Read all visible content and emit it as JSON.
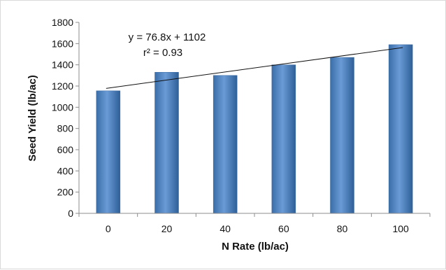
{
  "chart_data": {
    "type": "bar",
    "categories": [
      "0",
      "20",
      "40",
      "60",
      "80",
      "100"
    ],
    "values": [
      1155,
      1330,
      1300,
      1400,
      1470,
      1590
    ],
    "title": "",
    "xlabel": "N Rate (lb/ac)",
    "ylabel": "Seed Yield (lb/ac)",
    "ylim": [
      0,
      1800
    ],
    "yticks": [
      "0",
      "200",
      "400",
      "600",
      "800",
      "1000",
      "1200",
      "1400",
      "1600",
      "1800"
    ],
    "grid": false,
    "legend": "none",
    "bar_color": "#4a7ebb",
    "trendline": {
      "type": "linear",
      "start_value": 1178,
      "end_value": 1563,
      "equation_label": "y = 76.8x + 1102",
      "r2_label": "r² = 0.93"
    }
  }
}
